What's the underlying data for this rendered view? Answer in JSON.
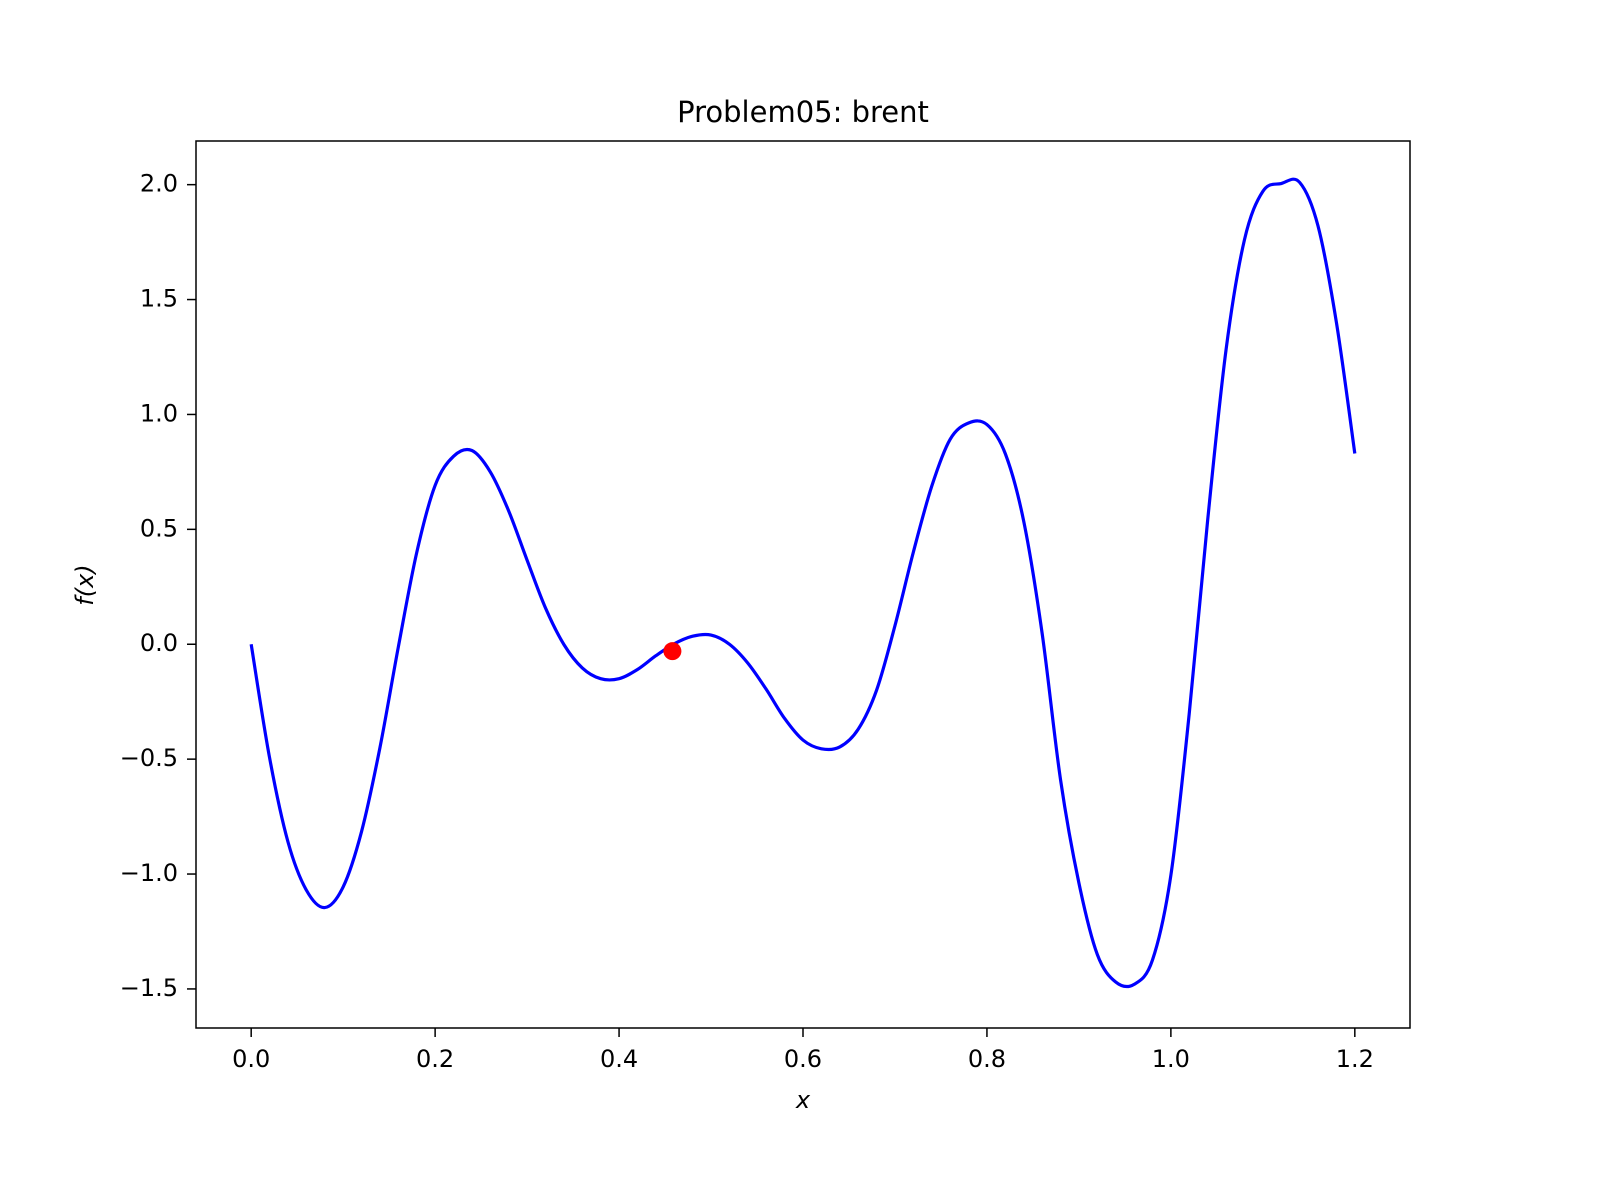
{
  "chart_data": {
    "type": "line",
    "title": "Problem05: brent",
    "xlabel": "x",
    "ylabel": "f(x)",
    "xlim": [
      -0.06,
      1.26
    ],
    "ylim": [
      -1.67,
      2.19
    ],
    "xticks": [
      0.0,
      0.2,
      0.4,
      0.6,
      0.8,
      1.0,
      1.2
    ],
    "xtick_labels": [
      "0.0",
      "0.2",
      "0.4",
      "0.6",
      "0.8",
      "1.0",
      "1.2"
    ],
    "yticks": [
      -1.5,
      -1.0,
      -0.5,
      0.0,
      0.5,
      1.0,
      1.5,
      2.0
    ],
    "ytick_labels": [
      "−1.5",
      "−1.0",
      "−0.5",
      "0.0",
      "0.5",
      "1.0",
      "1.5",
      "2.0"
    ],
    "grid": false,
    "series": [
      {
        "color": "#0000ff",
        "x": [
          0.0,
          0.02,
          0.04,
          0.06,
          0.08,
          0.1,
          0.12,
          0.14,
          0.16,
          0.18,
          0.2,
          0.22,
          0.24,
          0.26,
          0.28,
          0.3,
          0.32,
          0.34,
          0.36,
          0.38,
          0.4,
          0.42,
          0.44,
          0.46,
          0.48,
          0.5,
          0.52,
          0.54,
          0.56,
          0.58,
          0.6,
          0.62,
          0.64,
          0.66,
          0.68,
          0.7,
          0.72,
          0.74,
          0.76,
          0.78,
          0.8,
          0.82,
          0.84,
          0.86,
          0.88,
          0.9,
          0.92,
          0.94,
          0.96,
          0.98,
          1.0,
          1.02,
          1.04,
          1.06,
          1.08,
          1.1,
          1.12,
          1.14,
          1.16,
          1.18,
          1.2
        ],
        "y": [
          0.0,
          -0.494,
          -0.86,
          -1.07,
          -1.146,
          -1.056,
          -0.815,
          -0.45,
          -0.012,
          0.399,
          0.691,
          0.818,
          0.843,
          0.75,
          0.58,
          0.366,
          0.158,
          -0.001,
          -0.103,
          -0.15,
          -0.15,
          -0.11,
          -0.05,
          0.002,
          0.035,
          0.04,
          0.0,
          -0.082,
          -0.196,
          -0.323,
          -0.417,
          -0.455,
          -0.447,
          -0.37,
          -0.2,
          0.081,
          0.401,
          0.688,
          0.892,
          0.963,
          0.956,
          0.829,
          0.535,
          0.048,
          -0.589,
          -1.039,
          -1.35,
          -1.47,
          -1.48,
          -1.374,
          -1.005,
          -0.3,
          0.54,
          1.282,
          1.76,
          1.971,
          2.005,
          2.01,
          1.82,
          1.4,
          0.83
        ]
      }
    ],
    "markers": [
      {
        "color": "#ff0000",
        "x": 0.458,
        "y": -0.03
      }
    ]
  }
}
